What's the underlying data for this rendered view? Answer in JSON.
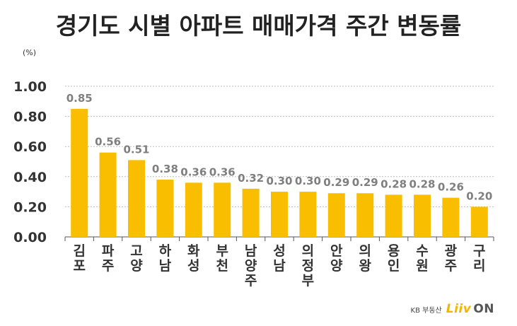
{
  "title": "경기도 시별 아파트 매매가격 주간 변동률",
  "unit": "(%)",
  "source": {
    "kb": "KB 부동산",
    "logo_main": "Liiv",
    "logo_on": "ON"
  },
  "colors": {
    "bar": "#F9BE00",
    "grid": "#bdbdbd",
    "axis": "#555555",
    "value_label": "#7f7f7f"
  },
  "chart_data": {
    "type": "bar",
    "categories": [
      "김포",
      "파주",
      "고양",
      "하남",
      "화성",
      "부천",
      "남양주",
      "성남",
      "의정부",
      "안양",
      "의왕",
      "용인",
      "수원",
      "광주",
      "구리"
    ],
    "values": [
      0.85,
      0.56,
      0.51,
      0.38,
      0.36,
      0.36,
      0.32,
      0.3,
      0.3,
      0.29,
      0.29,
      0.28,
      0.28,
      0.26,
      0.2
    ],
    "value_labels": [
      "0.85",
      "0.56",
      "0.51",
      "0.38",
      "0.36",
      "0.36",
      "0.32",
      "0.30",
      "0.30",
      "0.29",
      "0.29",
      "0.28",
      "0.28",
      "0.26",
      "0.20"
    ],
    "ylim": [
      0,
      1.0
    ],
    "yticks": [
      "0.00",
      "0.20",
      "0.40",
      "0.60",
      "0.80",
      "1.00"
    ],
    "grid": true,
    "legend": "none"
  }
}
